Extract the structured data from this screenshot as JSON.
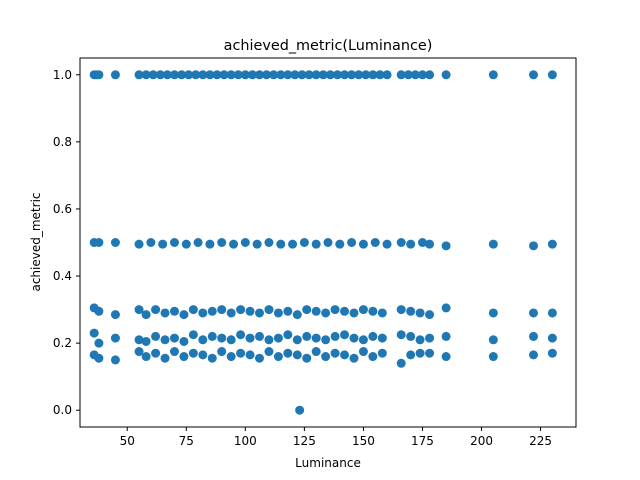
{
  "chart_data": {
    "type": "scatter",
    "title": "achieved_metric(Luminance)",
    "xlabel": "Luminance",
    "ylabel": "achieved_metric",
    "xlim": [
      30,
      240
    ],
    "ylim": [
      -0.05,
      1.05
    ],
    "xticks": [
      50,
      75,
      100,
      125,
      150,
      175,
      200,
      225
    ],
    "yticks": [
      0.0,
      0.2,
      0.4,
      0.6,
      0.8,
      1.0
    ],
    "ytick_labels": [
      "0.0",
      "0.2",
      "0.4",
      "0.6",
      "0.8",
      "1.0"
    ],
    "grid": false,
    "color": "#1f77b4",
    "series": [
      {
        "x": [
          36,
          37,
          38,
          45,
          55,
          58,
          61,
          64,
          67,
          70,
          73,
          76,
          79,
          82,
          85,
          88,
          91,
          94,
          97,
          100,
          103,
          106,
          109,
          112,
          115,
          118,
          121,
          124,
          127,
          130,
          133,
          136,
          139,
          142,
          145,
          148,
          151,
          154,
          157,
          160,
          166,
          169,
          172,
          175,
          178,
          185,
          205,
          222,
          230
        ],
        "y": [
          1,
          1,
          1,
          1,
          1,
          1,
          1,
          1,
          1,
          1,
          1,
          1,
          1,
          1,
          1,
          1,
          1,
          1,
          1,
          1,
          1,
          1,
          1,
          1,
          1,
          1,
          1,
          1,
          1,
          1,
          1,
          1,
          1,
          1,
          1,
          1,
          1,
          1,
          1,
          1,
          1,
          1,
          1,
          1,
          1,
          1,
          1,
          1,
          1
        ]
      },
      {
        "x": [
          36,
          38,
          45,
          55,
          60,
          65,
          70,
          75,
          80,
          85,
          90,
          95,
          100,
          105,
          110,
          115,
          120,
          125,
          130,
          135,
          140,
          145,
          150,
          155,
          160,
          166,
          170,
          175,
          178,
          185,
          205,
          222,
          230
        ],
        "y": [
          0.5,
          0.5,
          0.5,
          0.495,
          0.5,
          0.495,
          0.5,
          0.495,
          0.5,
          0.495,
          0.5,
          0.495,
          0.5,
          0.495,
          0.5,
          0.495,
          0.495,
          0.5,
          0.495,
          0.5,
          0.495,
          0.5,
          0.495,
          0.5,
          0.495,
          0.5,
          0.495,
          0.5,
          0.495,
          0.49,
          0.495,
          0.49,
          0.495
        ]
      },
      {
        "x": [
          36,
          38,
          45,
          55,
          58,
          62,
          66,
          70,
          74,
          78,
          82,
          86,
          90,
          94,
          98,
          102,
          106,
          110,
          114,
          118,
          122,
          126,
          130,
          134,
          138,
          142,
          146,
          150,
          154,
          158,
          166,
          170,
          174,
          178,
          185,
          205,
          222,
          230
        ],
        "y": [
          0.305,
          0.295,
          0.285,
          0.3,
          0.285,
          0.3,
          0.29,
          0.295,
          0.285,
          0.3,
          0.29,
          0.295,
          0.3,
          0.29,
          0.3,
          0.295,
          0.29,
          0.3,
          0.29,
          0.295,
          0.285,
          0.3,
          0.295,
          0.29,
          0.3,
          0.295,
          0.29,
          0.3,
          0.295,
          0.29,
          0.3,
          0.295,
          0.29,
          0.285,
          0.305,
          0.29,
          0.29,
          0.29
        ]
      },
      {
        "x": [
          36,
          38,
          45,
          55,
          58,
          62,
          66,
          70,
          74,
          78,
          82,
          86,
          90,
          94,
          98,
          102,
          106,
          110,
          114,
          118,
          122,
          126,
          130,
          134,
          138,
          142,
          146,
          150,
          154,
          158,
          166,
          170,
          174,
          178,
          185,
          205,
          222,
          230
        ],
        "y": [
          0.23,
          0.2,
          0.215,
          0.21,
          0.205,
          0.22,
          0.21,
          0.215,
          0.205,
          0.225,
          0.21,
          0.22,
          0.215,
          0.21,
          0.225,
          0.215,
          0.22,
          0.21,
          0.215,
          0.225,
          0.21,
          0.22,
          0.215,
          0.21,
          0.22,
          0.225,
          0.215,
          0.21,
          0.22,
          0.215,
          0.225,
          0.22,
          0.21,
          0.215,
          0.22,
          0.21,
          0.22,
          0.215
        ]
      },
      {
        "x": [
          36,
          38,
          45,
          55,
          58,
          62,
          66,
          70,
          74,
          78,
          82,
          86,
          90,
          94,
          98,
          102,
          106,
          110,
          114,
          118,
          122,
          126,
          130,
          134,
          138,
          142,
          146,
          150,
          154,
          158,
          166,
          170,
          174,
          178,
          185,
          205,
          222,
          230
        ],
        "y": [
          0.165,
          0.155,
          0.15,
          0.175,
          0.16,
          0.17,
          0.155,
          0.175,
          0.16,
          0.17,
          0.165,
          0.155,
          0.175,
          0.16,
          0.17,
          0.165,
          0.155,
          0.175,
          0.16,
          0.17,
          0.165,
          0.155,
          0.175,
          0.16,
          0.17,
          0.165,
          0.155,
          0.175,
          0.16,
          0.17,
          0.14,
          0.165,
          0.17,
          0.17,
          0.16,
          0.16,
          0.165,
          0.17
        ]
      },
      {
        "x": [
          123
        ],
        "y": [
          0.0
        ]
      }
    ]
  }
}
